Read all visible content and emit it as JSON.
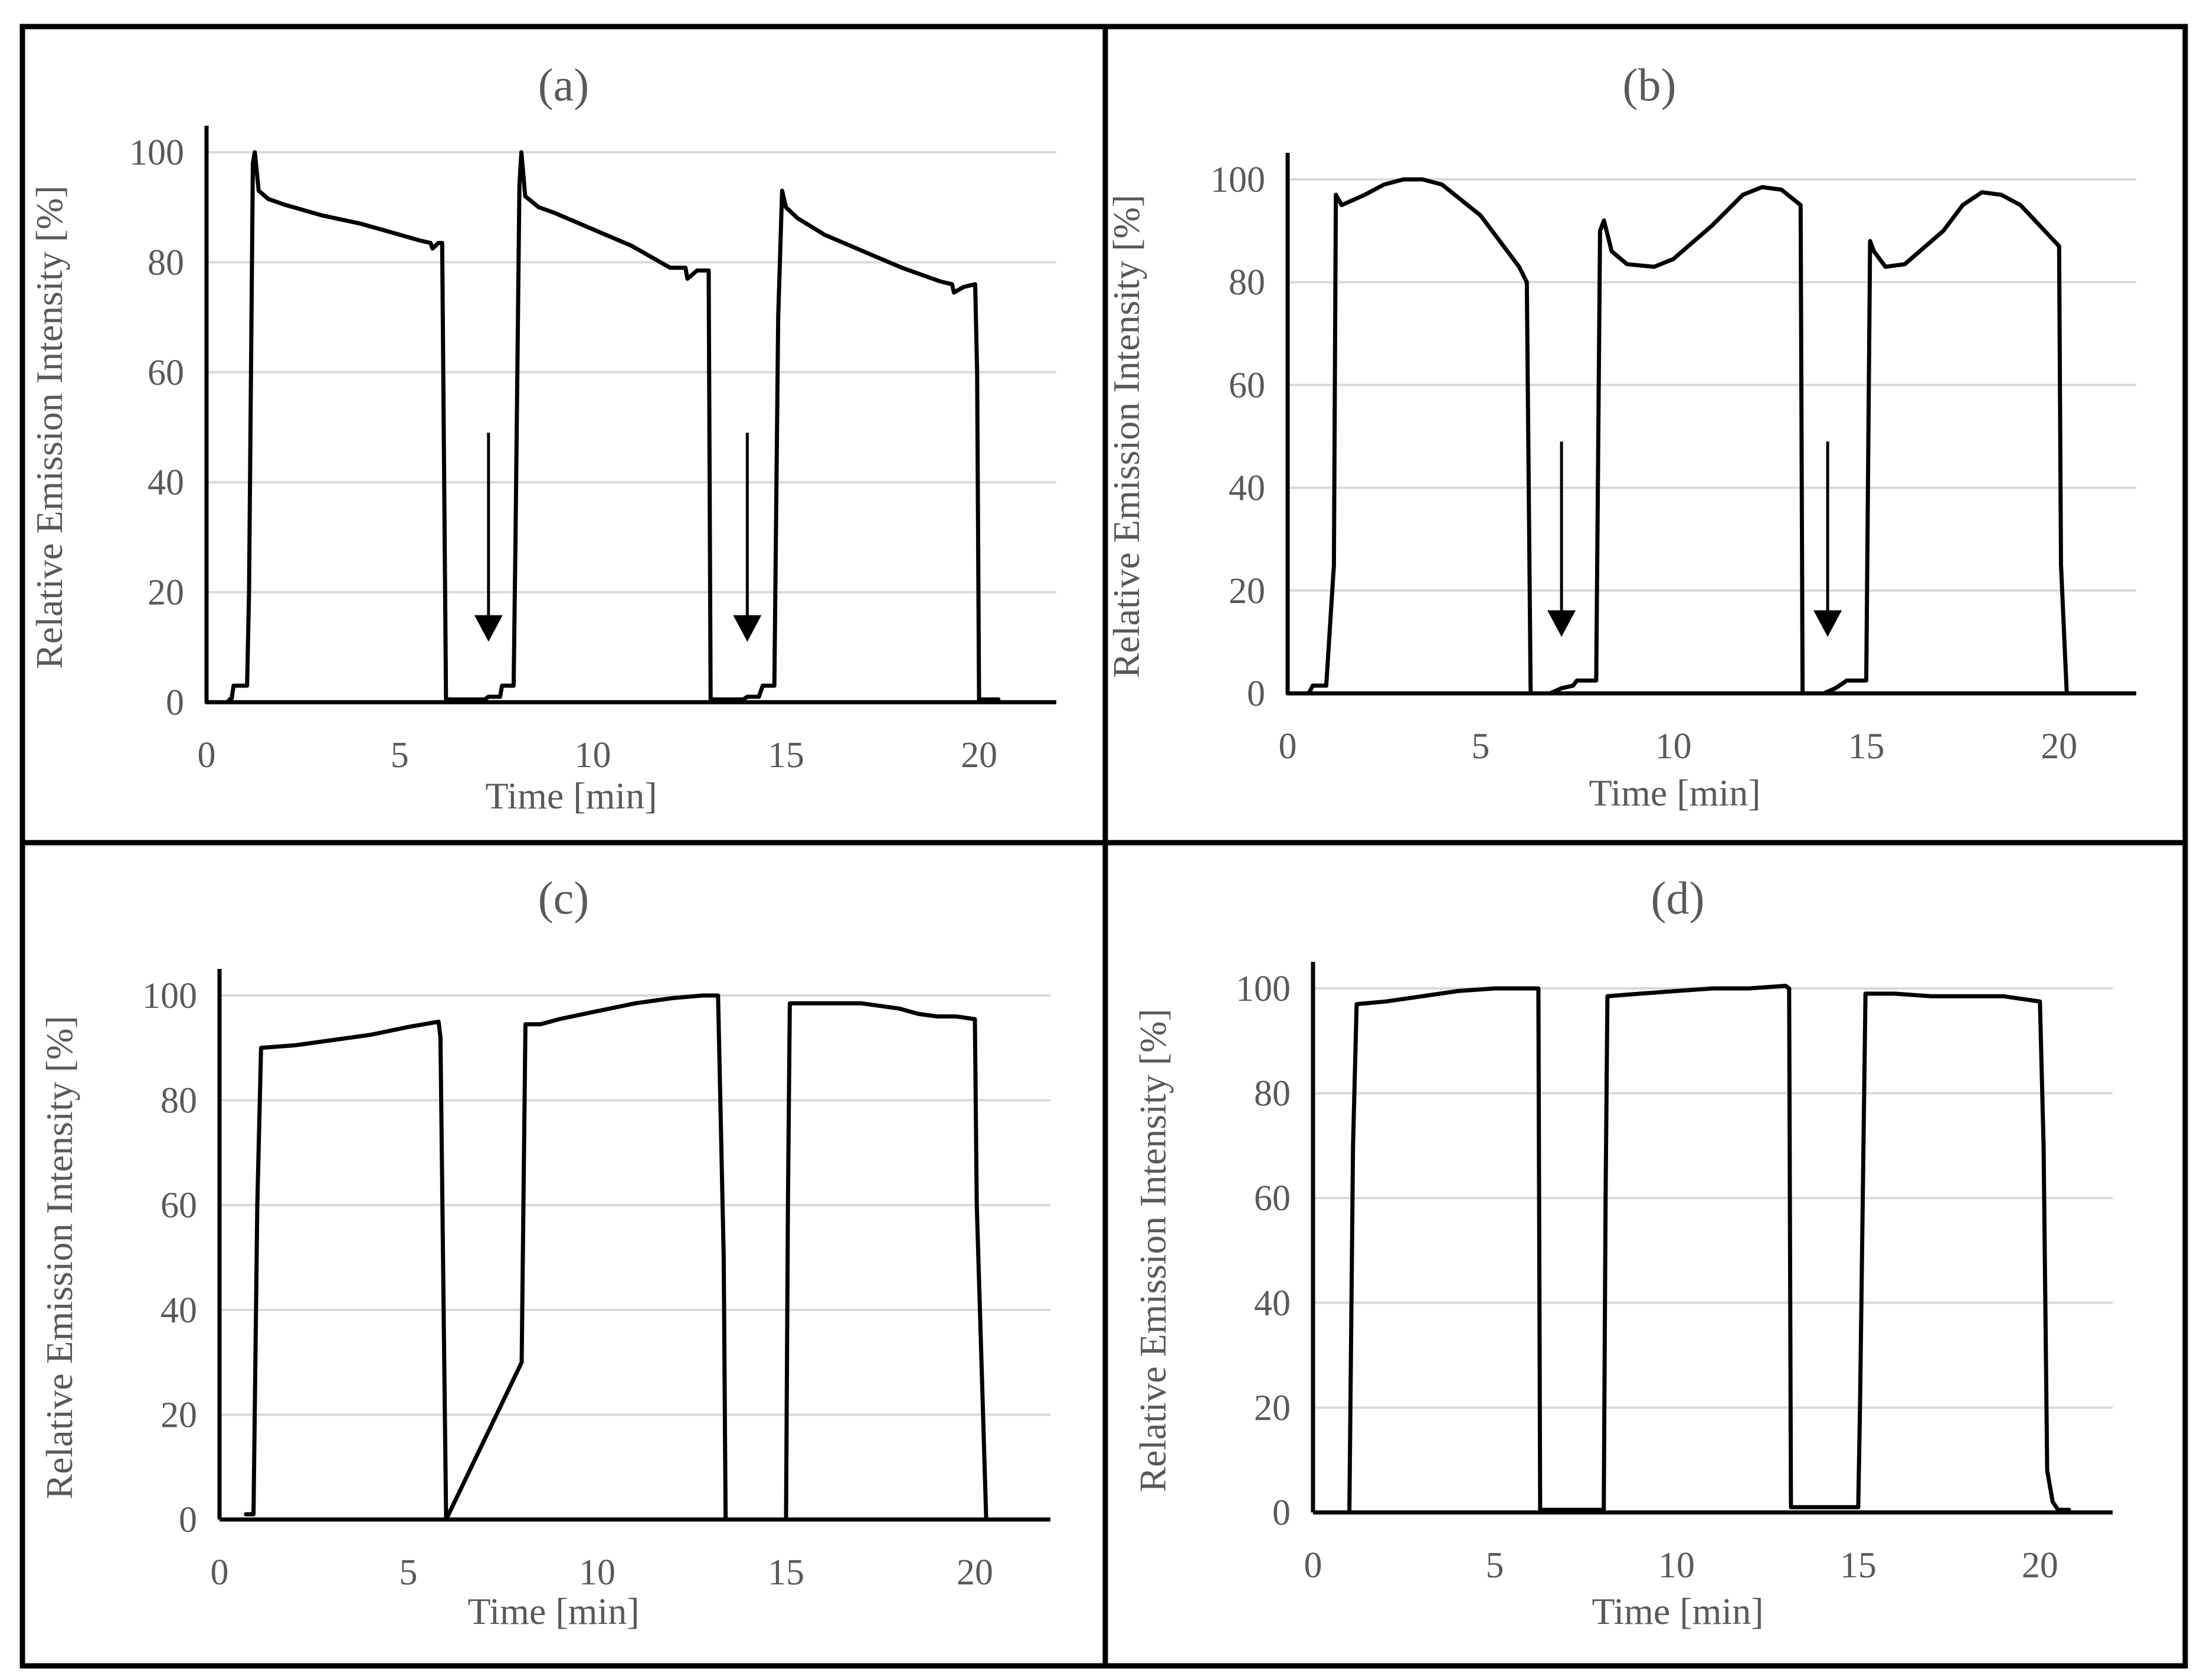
{
  "colors": {
    "line": "#000000",
    "grid": "#d9d9d9",
    "text": "#595959",
    "frame": "#000000"
  },
  "chart_data": [
    {
      "type": "line",
      "title": "(a)",
      "xlabel": "Time [min]",
      "ylabel": "Relative Emission Intensity  [%]",
      "xlim": [
        0,
        22
      ],
      "ylim": [
        0,
        100
      ],
      "x_ticks": [
        0,
        5,
        10,
        15,
        20
      ],
      "y_ticks": [
        0,
        20,
        40,
        60,
        80,
        100
      ],
      "grid": "horizontal",
      "arrows_at_min": [
        7.3,
        14.0
      ],
      "series": [
        {
          "name": "intensity",
          "points": [
            [
              0,
              0
            ],
            [
              0.55,
              0
            ],
            [
              0.6,
              0.5
            ],
            [
              0.65,
              0.6
            ],
            [
              0.7,
              3
            ],
            [
              1.05,
              3
            ],
            [
              1.1,
              20
            ],
            [
              1.2,
              98
            ],
            [
              1.25,
              100
            ],
            [
              1.35,
              93
            ],
            [
              1.6,
              91.5
            ],
            [
              2,
              90.5
            ],
            [
              3,
              88.5
            ],
            [
              4,
              87
            ],
            [
              5,
              85
            ],
            [
              5.5,
              84
            ],
            [
              5.8,
              83.5
            ],
            [
              5.85,
              82.5
            ],
            [
              6,
              83.5
            ],
            [
              6.1,
              83.5
            ],
            [
              6.2,
              0.5
            ],
            [
              6.8,
              0.5
            ],
            [
              7.2,
              0.5
            ],
            [
              7.3,
              1
            ],
            [
              7.6,
              1
            ],
            [
              7.65,
              3
            ],
            [
              7.95,
              3
            ],
            [
              8.0,
              30
            ],
            [
              8.1,
              94
            ],
            [
              8.15,
              100
            ],
            [
              8.25,
              92
            ],
            [
              8.6,
              90
            ],
            [
              9,
              89
            ],
            [
              10,
              86
            ],
            [
              11,
              83
            ],
            [
              12,
              79
            ],
            [
              12.4,
              79
            ],
            [
              12.45,
              77
            ],
            [
              12.7,
              78.5
            ],
            [
              13.0,
              78.5
            ],
            [
              13.05,
              0.5
            ],
            [
              13.9,
              0.5
            ],
            [
              14.0,
              1
            ],
            [
              14.3,
              1
            ],
            [
              14.4,
              3
            ],
            [
              14.7,
              3
            ],
            [
              14.8,
              70
            ],
            [
              14.9,
              93
            ],
            [
              15.0,
              90
            ],
            [
              15.3,
              88
            ],
            [
              16,
              85
            ],
            [
              17,
              82
            ],
            [
              18,
              79
            ],
            [
              19,
              76.5
            ],
            [
              19.3,
              76
            ],
            [
              19.35,
              74.5
            ],
            [
              19.6,
              75.5
            ],
            [
              19.9,
              76
            ],
            [
              19.95,
              60
            ],
            [
              20.0,
              0.5
            ],
            [
              20.5,
              0.5
            ]
          ]
        }
      ]
    },
    {
      "type": "line",
      "title": "(b)",
      "xlabel": "Time [min]",
      "ylabel": "Relative Emission Intensity  [%]",
      "xlim": [
        0,
        22
      ],
      "ylim": [
        0,
        100
      ],
      "x_ticks": [
        0,
        5,
        10,
        15,
        20
      ],
      "y_ticks": [
        0,
        20,
        40,
        60,
        80,
        100
      ],
      "grid": "horizontal",
      "arrows_at_min": [
        7.1,
        14.0
      ],
      "series": [
        {
          "name": "intensity",
          "points": [
            [
              0,
              0
            ],
            [
              0.55,
              0
            ],
            [
              0.65,
              1.5
            ],
            [
              1.0,
              1.5
            ],
            [
              1.2,
              25
            ],
            [
              1.25,
              97
            ],
            [
              1.4,
              95
            ],
            [
              2,
              97
            ],
            [
              2.5,
              99
            ],
            [
              3,
              100
            ],
            [
              3.5,
              100
            ],
            [
              4,
              99
            ],
            [
              5,
              93
            ],
            [
              6,
              83
            ],
            [
              6.2,
              80
            ],
            [
              6.3,
              0
            ],
            [
              6.8,
              0
            ],
            [
              7.1,
              1
            ],
            [
              7.4,
              1.5
            ],
            [
              7.5,
              2.5
            ],
            [
              8.0,
              2.5
            ],
            [
              8.1,
              90
            ],
            [
              8.2,
              92
            ],
            [
              8.4,
              86
            ],
            [
              8.8,
              83.5
            ],
            [
              9.5,
              83
            ],
            [
              10,
              84.5
            ],
            [
              11,
              91
            ],
            [
              11.8,
              97
            ],
            [
              12.3,
              98.5
            ],
            [
              12.8,
              98
            ],
            [
              13.3,
              95
            ],
            [
              13.35,
              0
            ],
            [
              13.9,
              0
            ],
            [
              14.2,
              1
            ],
            [
              14.5,
              2.5
            ],
            [
              15.0,
              2.5
            ],
            [
              15.1,
              88
            ],
            [
              15.2,
              86
            ],
            [
              15.5,
              83
            ],
            [
              16,
              83.5
            ],
            [
              17,
              90
            ],
            [
              17.5,
              95
            ],
            [
              18.0,
              97.5
            ],
            [
              18.5,
              97
            ],
            [
              19,
              95
            ],
            [
              19.5,
              91
            ],
            [
              20.0,
              87
            ],
            [
              20.05,
              25
            ],
            [
              20.2,
              0
            ],
            [
              20.4,
              0
            ]
          ]
        }
      ]
    },
    {
      "type": "line",
      "title": "(c)",
      "xlabel": "Time [min]",
      "ylabel": "Relative Emission Intensity   [%]",
      "xlim": [
        0,
        22
      ],
      "ylim": [
        0,
        100
      ],
      "x_ticks": [
        0,
        5,
        10,
        15,
        20
      ],
      "y_ticks": [
        0,
        20,
        40,
        60,
        80,
        100
      ],
      "grid": "horizontal",
      "series": [
        {
          "name": "intensity",
          "points": [
            [
              0.7,
              1
            ],
            [
              0.9,
              1
            ],
            [
              1.0,
              60
            ],
            [
              1.1,
              90
            ],
            [
              2,
              90.5
            ],
            [
              3,
              91.5
            ],
            [
              4,
              92.5
            ],
            [
              5,
              94
            ],
            [
              5.8,
              95
            ],
            [
              5.85,
              92
            ],
            [
              5.95,
              30
            ],
            [
              6.0,
              0
            ],
            [
              8.0,
              30
            ],
            [
              8.1,
              94.5
            ],
            [
              8.5,
              94.5
            ],
            [
              9,
              95.5
            ],
            [
              10,
              97
            ],
            [
              11,
              98.5
            ],
            [
              12,
              99.5
            ],
            [
              12.8,
              100
            ],
            [
              13.2,
              100
            ],
            [
              13.35,
              50
            ],
            [
              13.4,
              0
            ],
            [
              15.0,
              0
            ],
            [
              15.05,
              60
            ],
            [
              15.1,
              98.5
            ],
            [
              16,
              98.5
            ],
            [
              17,
              98.5
            ],
            [
              18,
              97.5
            ],
            [
              18.5,
              96.5
            ],
            [
              19.0,
              96
            ],
            [
              19.5,
              96
            ],
            [
              20.0,
              95.5
            ],
            [
              20.05,
              60
            ],
            [
              20.3,
              0
            ]
          ]
        }
      ]
    },
    {
      "type": "line",
      "title": "(d)",
      "xlabel": "Time [min]",
      "ylabel": "Relative Emission Intensity  [%]",
      "xlim": [
        0,
        22
      ],
      "ylim": [
        0,
        100
      ],
      "x_ticks": [
        0,
        5,
        10,
        15,
        20
      ],
      "y_ticks": [
        0,
        20,
        40,
        60,
        80,
        100
      ],
      "grid": "horizontal",
      "series": [
        {
          "name": "intensity",
          "points": [
            [
              1.0,
              0
            ],
            [
              1.1,
              70
            ],
            [
              1.2,
              97
            ],
            [
              2,
              97.5
            ],
            [
              3,
              98.5
            ],
            [
              4,
              99.5
            ],
            [
              5,
              100
            ],
            [
              6,
              100
            ],
            [
              6.2,
              100
            ],
            [
              6.25,
              0.5
            ],
            [
              8.0,
              0.5
            ],
            [
              8.05,
              60
            ],
            [
              8.1,
              98.5
            ],
            [
              9,
              99
            ],
            [
              10,
              99.5
            ],
            [
              11,
              100
            ],
            [
              12,
              100
            ],
            [
              13.0,
              100.5
            ],
            [
              13.1,
              100
            ],
            [
              13.15,
              1
            ],
            [
              15.0,
              1
            ],
            [
              15.05,
              20
            ],
            [
              15.2,
              99
            ],
            [
              16,
              99
            ],
            [
              17,
              98.5
            ],
            [
              18,
              98.5
            ],
            [
              19,
              98.5
            ],
            [
              19.5,
              98
            ],
            [
              20.0,
              97.5
            ],
            [
              20.1,
              70
            ],
            [
              20.2,
              8
            ],
            [
              20.35,
              2
            ],
            [
              20.5,
              0.5
            ],
            [
              20.8,
              0.5
            ]
          ]
        }
      ]
    }
  ]
}
